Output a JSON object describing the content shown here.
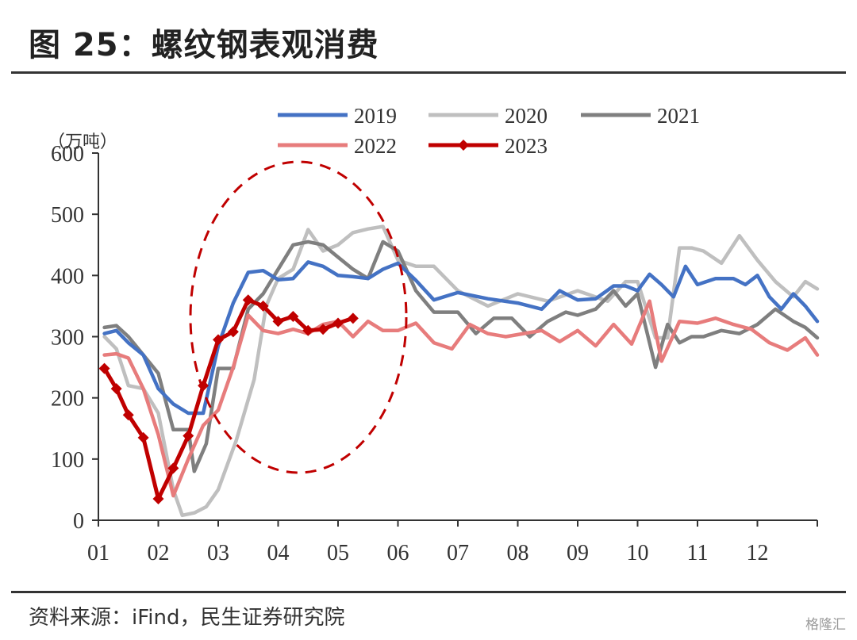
{
  "header": {
    "title": "图 25：螺纹钢表观消费"
  },
  "footer": {
    "source": "资料来源：iFind，民生证券研究院",
    "watermark": "格隆汇"
  },
  "chart_data": {
    "type": "line",
    "title": "螺纹钢表观消费",
    "ylabel": "（万吨）",
    "xlabel": "",
    "ylim": [
      0,
      600
    ],
    "yticks": [
      0,
      100,
      200,
      300,
      400,
      500,
      600
    ],
    "xlim": [
      1,
      13
    ],
    "xticks": [
      "01",
      "02",
      "03",
      "04",
      "05",
      "06",
      "07",
      "08",
      "09",
      "10",
      "11",
      "12"
    ],
    "annotation": "dashed red ellipse highlighting the 03–05 period",
    "series": [
      {
        "name": "2019",
        "color": "#4472C4",
        "marker": "none",
        "x": [
          1.1,
          1.3,
          1.5,
          1.75,
          2.0,
          2.25,
          2.5,
          2.75,
          3.0,
          3.25,
          3.5,
          3.75,
          4.0,
          4.25,
          4.5,
          4.75,
          5.0,
          5.25,
          5.5,
          5.75,
          6.0,
          6.3,
          6.6,
          7.0,
          7.5,
          8.0,
          8.4,
          8.7,
          9.0,
          9.3,
          9.6,
          9.8,
          10.0,
          10.2,
          10.4,
          10.6,
          10.8,
          11.0,
          11.3,
          11.6,
          11.8,
          12.0,
          12.2,
          12.4,
          12.6,
          12.8,
          13.0
        ],
        "y": [
          305,
          310,
          290,
          270,
          215,
          190,
          175,
          175,
          285,
          355,
          405,
          408,
          393,
          395,
          422,
          415,
          400,
          398,
          395,
          410,
          420,
          392,
          360,
          372,
          362,
          355,
          345,
          375,
          360,
          362,
          383,
          383,
          375,
          402,
          385,
          365,
          415,
          385,
          395,
          395,
          385,
          400,
          365,
          345,
          370,
          350,
          325
        ]
      },
      {
        "name": "2020",
        "color": "#BFBFBF",
        "marker": "none",
        "x": [
          1.1,
          1.3,
          1.5,
          1.75,
          2.0,
          2.25,
          2.4,
          2.6,
          2.8,
          3.0,
          3.3,
          3.6,
          3.8,
          4.0,
          4.25,
          4.5,
          4.75,
          5.0,
          5.25,
          5.5,
          5.75,
          6.0,
          6.3,
          6.6,
          7.0,
          7.5,
          8.0,
          8.5,
          9.0,
          9.5,
          9.8,
          10.0,
          10.3,
          10.5,
          10.7,
          10.9,
          11.1,
          11.4,
          11.7,
          12.0,
          12.3,
          12.6,
          12.8,
          13.0
        ],
        "y": [
          300,
          280,
          220,
          215,
          175,
          50,
          8,
          12,
          22,
          50,
          130,
          230,
          350,
          395,
          410,
          475,
          440,
          450,
          470,
          476,
          480,
          425,
          415,
          415,
          375,
          350,
          370,
          358,
          375,
          358,
          390,
          390,
          298,
          298,
          445,
          445,
          440,
          420,
          465,
          425,
          390,
          365,
          390,
          378
        ]
      },
      {
        "name": "2021",
        "color": "#7F7F7F",
        "marker": "none",
        "x": [
          1.1,
          1.3,
          1.5,
          1.75,
          2.0,
          2.25,
          2.5,
          2.6,
          2.8,
          3.0,
          3.25,
          3.5,
          3.75,
          4.0,
          4.25,
          4.5,
          4.75,
          5.0,
          5.25,
          5.5,
          5.75,
          6.0,
          6.3,
          6.6,
          7.0,
          7.3,
          7.6,
          7.9,
          8.2,
          8.5,
          8.8,
          9.0,
          9.3,
          9.6,
          9.8,
          10.0,
          10.3,
          10.5,
          10.7,
          10.9,
          11.1,
          11.4,
          11.7,
          12.0,
          12.3,
          12.6,
          12.8,
          13.0
        ],
        "y": [
          315,
          318,
          300,
          270,
          240,
          148,
          148,
          80,
          125,
          248,
          248,
          345,
          370,
          410,
          450,
          455,
          450,
          430,
          410,
          395,
          455,
          440,
          375,
          340,
          340,
          305,
          330,
          330,
          300,
          325,
          340,
          335,
          345,
          375,
          350,
          370,
          250,
          320,
          290,
          300,
          300,
          310,
          305,
          320,
          345,
          325,
          315,
          298
        ]
      },
      {
        "name": "2022",
        "color": "#E77C7C",
        "marker": "none",
        "x": [
          1.1,
          1.3,
          1.5,
          1.75,
          2.0,
          2.25,
          2.5,
          2.75,
          3.0,
          3.25,
          3.5,
          3.75,
          4.0,
          4.25,
          4.5,
          4.75,
          5.0,
          5.25,
          5.5,
          5.75,
          6.0,
          6.3,
          6.6,
          6.9,
          7.2,
          7.5,
          7.8,
          8.1,
          8.4,
          8.7,
          9.0,
          9.3,
          9.6,
          9.9,
          10.2,
          10.4,
          10.7,
          11.0,
          11.3,
          11.6,
          11.9,
          12.2,
          12.5,
          12.8,
          13.0
        ],
        "y": [
          270,
          272,
          265,
          215,
          140,
          40,
          100,
          155,
          180,
          250,
          335,
          310,
          305,
          312,
          305,
          320,
          325,
          300,
          325,
          310,
          310,
          322,
          290,
          280,
          320,
          305,
          300,
          305,
          310,
          292,
          310,
          285,
          320,
          288,
          358,
          260,
          325,
          322,
          330,
          320,
          312,
          290,
          278,
          298,
          270
        ]
      },
      {
        "name": "2023",
        "color": "#C00000",
        "marker": "diamond",
        "x": [
          1.1,
          1.3,
          1.5,
          1.75,
          2.0,
          2.25,
          2.5,
          2.75,
          3.0,
          3.25,
          3.5,
          3.75,
          4.0,
          4.25,
          4.5,
          4.75,
          5.0,
          5.25
        ],
        "y": [
          248,
          215,
          172,
          135,
          35,
          85,
          138,
          220,
          295,
          308,
          360,
          350,
          325,
          333,
          310,
          312,
          322,
          330
        ]
      }
    ]
  }
}
